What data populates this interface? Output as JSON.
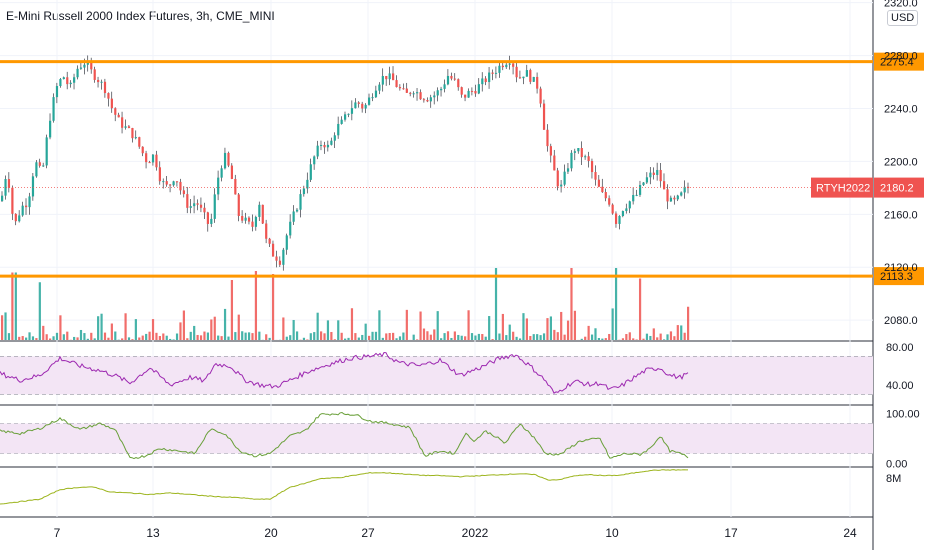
{
  "title": "E-Mini Russell 2000 Index Futures, 3h, CME_MINI",
  "currency": "USD",
  "symbol_tag": "RTYH2022",
  "colors": {
    "up": "#26a69a",
    "down": "#ef5350",
    "hline": "#ff9800",
    "rsi": "#9c27b0",
    "stoch": "#689f38",
    "obv": "#9cb41c",
    "band_fill": "#f3e5f5",
    "price_tag": "#ef5350",
    "grid": "#f0f3fa"
  },
  "chart_data": [
    {
      "type": "candlestick",
      "title": "E-Mini Russell 2000 Index Futures, 3h, CME_MINI",
      "ylim": [
        2065,
        2322
      ],
      "y_ticks": [
        2080.0,
        2120.0,
        2160.0,
        2200.0,
        2240.0,
        2280.0,
        2320.0
      ],
      "x_ticks": [
        "7",
        "13",
        "20",
        "27",
        "2022",
        "10",
        "17",
        "24"
      ],
      "last_price": 2180.2,
      "last_price_label": "2180.2",
      "horizontal_lines": [
        {
          "value": 2275.4,
          "label": "2275.4"
        },
        {
          "value": 2113.3,
          "label": "2113.3"
        }
      ],
      "close_path": [
        [
          0,
          2170
        ],
        [
          6,
          2195
        ],
        [
          13,
          2150
        ],
        [
          20,
          2165
        ],
        [
          27,
          2170
        ],
        [
          34,
          2200
        ],
        [
          41,
          2190
        ],
        [
          48,
          2230
        ],
        [
          55,
          2255
        ],
        [
          62,
          2265
        ],
        [
          69,
          2255
        ],
        [
          76,
          2270
        ],
        [
          83,
          2275
        ],
        [
          90,
          2268
        ],
        [
          97,
          2262
        ],
        [
          104,
          2255
        ],
        [
          111,
          2240
        ],
        [
          118,
          2230
        ],
        [
          125,
          2225
        ],
        [
          132,
          2220
        ],
        [
          139,
          2210
        ],
        [
          146,
          2200
        ],
        [
          153,
          2205
        ],
        [
          160,
          2185
        ],
        [
          167,
          2180
        ],
        [
          174,
          2190
        ],
        [
          181,
          2175
        ],
        [
          188,
          2165
        ],
        [
          195,
          2170
        ],
        [
          202,
          2160
        ],
        [
          209,
          2150
        ],
        [
          216,
          2185
        ],
        [
          223,
          2205
        ],
        [
          230,
          2190
        ],
        [
          237,
          2160
        ],
        [
          244,
          2155
        ],
        [
          251,
          2150
        ],
        [
          258,
          2170
        ],
        [
          265,
          2140
        ],
        [
          272,
          2130
        ],
        [
          279,
          2125
        ],
        [
          286,
          2145
        ],
        [
          293,
          2160
        ],
        [
          300,
          2175
        ],
        [
          307,
          2190
        ],
        [
          314,
          2205
        ],
        [
          321,
          2215
        ],
        [
          328,
          2210
        ],
        [
          335,
          2225
        ],
        [
          342,
          2230
        ],
        [
          349,
          2240
        ],
        [
          356,
          2245
        ],
        [
          363,
          2240
        ],
        [
          370,
          2250
        ],
        [
          377,
          2260
        ],
        [
          384,
          2265
        ],
        [
          391,
          2262
        ],
        [
          398,
          2255
        ],
        [
          405,
          2250
        ],
        [
          412,
          2255
        ],
        [
          419,
          2250
        ],
        [
          426,
          2248
        ],
        [
          433,
          2250
        ],
        [
          440,
          2255
        ],
        [
          447,
          2265
        ],
        [
          454,
          2260
        ],
        [
          461,
          2248
        ],
        [
          468,
          2252
        ],
        [
          475,
          2255
        ],
        [
          482,
          2260
        ],
        [
          489,
          2265
        ],
        [
          496,
          2270
        ],
        [
          503,
          2275
        ],
        [
          510,
          2278
        ],
        [
          517,
          2262
        ],
        [
          524,
          2268
        ],
        [
          531,
          2262
        ],
        [
          538,
          2255
        ],
        [
          545,
          2215
        ],
        [
          552,
          2195
        ],
        [
          559,
          2178
        ],
        [
          566,
          2195
        ],
        [
          573,
          2210
        ],
        [
          580,
          2205
        ],
        [
          587,
          2200
        ],
        [
          594,
          2185
        ],
        [
          601,
          2175
        ],
        [
          608,
          2170
        ],
        [
          615,
          2155
        ],
        [
          622,
          2165
        ],
        [
          629,
          2170
        ],
        [
          636,
          2175
        ],
        [
          643,
          2185
        ],
        [
          650,
          2190
        ],
        [
          657,
          2192
        ],
        [
          664,
          2175
        ],
        [
          671,
          2168
        ],
        [
          678,
          2172
        ],
        [
          685,
          2180
        ],
        [
          689,
          2180.2
        ]
      ],
      "volume_peaks": [
        [
          13,
          0.9
        ],
        [
          38,
          0.77
        ],
        [
          230,
          0.8
        ],
        [
          254,
          0.92
        ],
        [
          272,
          0.88
        ],
        [
          495,
          0.96
        ],
        [
          569,
          0.96
        ],
        [
          614,
          0.96
        ],
        [
          640,
          0.82
        ]
      ]
    },
    {
      "type": "line",
      "y_ticks": [
        40.0,
        80.0
      ],
      "band": [
        30,
        70
      ],
      "ylim": [
        20,
        85
      ],
      "series": [
        [
          0,
          52
        ],
        [
          20,
          45
        ],
        [
          40,
          50
        ],
        [
          60,
          68
        ],
        [
          80,
          60
        ],
        [
          100,
          55
        ],
        [
          115,
          50
        ],
        [
          130,
          42
        ],
        [
          150,
          58
        ],
        [
          170,
          40
        ],
        [
          190,
          48
        ],
        [
          205,
          44
        ],
        [
          215,
          62
        ],
        [
          230,
          60
        ],
        [
          245,
          45
        ],
        [
          260,
          40
        ],
        [
          275,
          38
        ],
        [
          290,
          45
        ],
        [
          310,
          55
        ],
        [
          330,
          62
        ],
        [
          350,
          68
        ],
        [
          370,
          70
        ],
        [
          385,
          72
        ],
        [
          400,
          63
        ],
        [
          420,
          60
        ],
        [
          440,
          66
        ],
        [
          460,
          50
        ],
        [
          480,
          58
        ],
        [
          500,
          68
        ],
        [
          515,
          72
        ],
        [
          530,
          60
        ],
        [
          545,
          45
        ],
        [
          555,
          30
        ],
        [
          565,
          38
        ],
        [
          575,
          44
        ],
        [
          590,
          40
        ],
        [
          600,
          42
        ],
        [
          610,
          35
        ],
        [
          620,
          38
        ],
        [
          630,
          45
        ],
        [
          645,
          55
        ],
        [
          660,
          58
        ],
        [
          670,
          50
        ],
        [
          680,
          48
        ],
        [
          689,
          52
        ]
      ]
    },
    {
      "type": "line",
      "y_ticks": [
        0.0,
        100.0
      ],
      "band": [
        20,
        80
      ],
      "ylim": [
        -5,
        115
      ],
      "series": [
        [
          0,
          65
        ],
        [
          20,
          60
        ],
        [
          40,
          70
        ],
        [
          60,
          90
        ],
        [
          80,
          68
        ],
        [
          100,
          80
        ],
        [
          115,
          68
        ],
        [
          130,
          10
        ],
        [
          145,
          15
        ],
        [
          160,
          30
        ],
        [
          180,
          25
        ],
        [
          195,
          20
        ],
        [
          210,
          68
        ],
        [
          225,
          60
        ],
        [
          240,
          25
        ],
        [
          255,
          15
        ],
        [
          270,
          20
        ],
        [
          290,
          55
        ],
        [
          305,
          65
        ],
        [
          320,
          98
        ],
        [
          340,
          100
        ],
        [
          355,
          98
        ],
        [
          370,
          85
        ],
        [
          390,
          80
        ],
        [
          410,
          72
        ],
        [
          425,
          15
        ],
        [
          440,
          25
        ],
        [
          455,
          20
        ],
        [
          465,
          60
        ],
        [
          475,
          45
        ],
        [
          485,
          65
        ],
        [
          495,
          55
        ],
        [
          505,
          40
        ],
        [
          520,
          80
        ],
        [
          535,
          50
        ],
        [
          545,
          20
        ],
        [
          560,
          18
        ],
        [
          580,
          45
        ],
        [
          600,
          50
        ],
        [
          610,
          10
        ],
        [
          625,
          20
        ],
        [
          640,
          18
        ],
        [
          650,
          30
        ],
        [
          660,
          55
        ],
        [
          670,
          25
        ],
        [
          680,
          20
        ],
        [
          689,
          12
        ]
      ]
    },
    {
      "type": "line",
      "y_ticks": [
        "8M"
      ],
      "ylim": [
        0,
        100
      ],
      "series": [
        [
          0,
          25
        ],
        [
          20,
          30
        ],
        [
          40,
          35
        ],
        [
          60,
          55
        ],
        [
          80,
          60
        ],
        [
          95,
          60
        ],
        [
          110,
          50
        ],
        [
          130,
          48
        ],
        [
          150,
          45
        ],
        [
          170,
          48
        ],
        [
          190,
          45
        ],
        [
          205,
          42
        ],
        [
          220,
          40
        ],
        [
          240,
          38
        ],
        [
          255,
          35
        ],
        [
          270,
          35
        ],
        [
          290,
          60
        ],
        [
          305,
          68
        ],
        [
          320,
          78
        ],
        [
          340,
          80
        ],
        [
          355,
          85
        ],
        [
          370,
          90
        ],
        [
          385,
          90
        ],
        [
          400,
          88
        ],
        [
          420,
          85
        ],
        [
          440,
          84
        ],
        [
          460,
          82
        ],
        [
          480,
          84
        ],
        [
          500,
          86
        ],
        [
          520,
          88
        ],
        [
          535,
          86
        ],
        [
          548,
          75
        ],
        [
          560,
          76
        ],
        [
          575,
          84
        ],
        [
          590,
          86
        ],
        [
          605,
          84
        ],
        [
          620,
          85
        ],
        [
          635,
          90
        ],
        [
          650,
          95
        ],
        [
          665,
          96
        ],
        [
          689,
          96
        ]
      ]
    }
  ]
}
